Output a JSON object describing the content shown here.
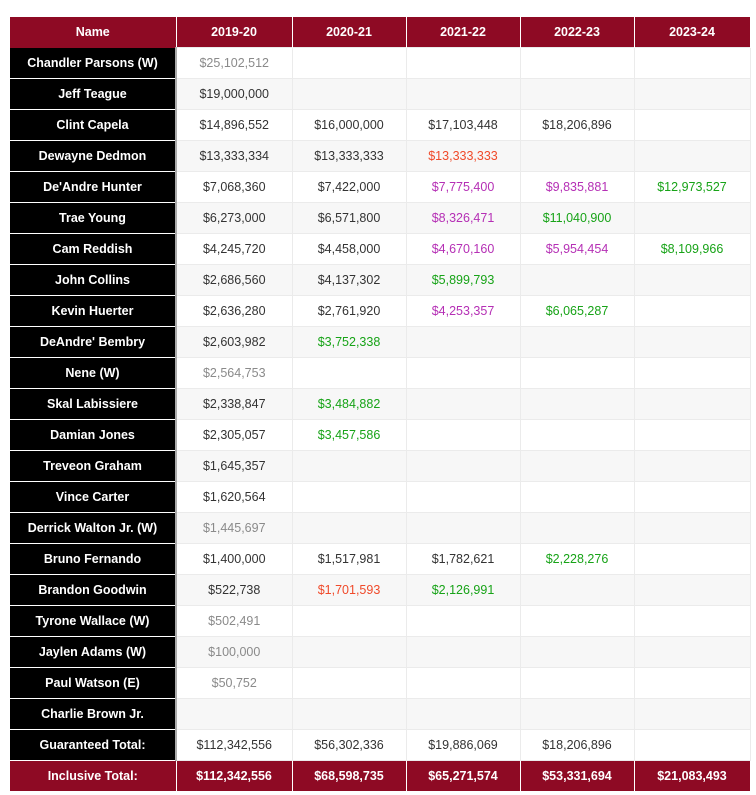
{
  "columns": [
    "Name",
    "2019-20",
    "2020-21",
    "2021-22",
    "2022-23",
    "2023-24"
  ],
  "colors": {
    "waived": "#8a8a8a",
    "player_option": "#f04a2a",
    "rookie_option": "#b52fb5",
    "qualifying_offer": "#17a317",
    "header": "#8e0a24"
  },
  "rows": [
    {
      "name": "Chandler Parsons (W)",
      "cells": [
        {
          "v": "$25,102,512",
          "t": "g"
        },
        {
          "v": ""
        },
        {
          "v": ""
        },
        {
          "v": ""
        },
        {
          "v": ""
        }
      ]
    },
    {
      "name": "Jeff Teague",
      "cells": [
        {
          "v": "$19,000,000"
        },
        {
          "v": ""
        },
        {
          "v": ""
        },
        {
          "v": ""
        },
        {
          "v": ""
        }
      ]
    },
    {
      "name": "Clint Capela",
      "cells": [
        {
          "v": "$14,896,552"
        },
        {
          "v": "$16,000,000"
        },
        {
          "v": "$17,103,448"
        },
        {
          "v": "$18,206,896"
        },
        {
          "v": ""
        }
      ]
    },
    {
      "name": "Dewayne Dedmon",
      "cells": [
        {
          "v": "$13,333,334"
        },
        {
          "v": "$13,333,333"
        },
        {
          "v": "$13,333,333",
          "t": "r"
        },
        {
          "v": ""
        },
        {
          "v": ""
        }
      ]
    },
    {
      "name": "De'Andre Hunter",
      "cells": [
        {
          "v": "$7,068,360"
        },
        {
          "v": "$7,422,000"
        },
        {
          "v": "$7,775,400",
          "t": "m"
        },
        {
          "v": "$9,835,881",
          "t": "m"
        },
        {
          "v": "$12,973,527",
          "t": "gr"
        }
      ]
    },
    {
      "name": "Trae Young",
      "cells": [
        {
          "v": "$6,273,000"
        },
        {
          "v": "$6,571,800"
        },
        {
          "v": "$8,326,471",
          "t": "m"
        },
        {
          "v": "$11,040,900",
          "t": "gr"
        },
        {
          "v": ""
        }
      ]
    },
    {
      "name": "Cam Reddish",
      "cells": [
        {
          "v": "$4,245,720"
        },
        {
          "v": "$4,458,000"
        },
        {
          "v": "$4,670,160",
          "t": "m"
        },
        {
          "v": "$5,954,454",
          "t": "m"
        },
        {
          "v": "$8,109,966",
          "t": "gr"
        }
      ]
    },
    {
      "name": "John Collins",
      "cells": [
        {
          "v": "$2,686,560"
        },
        {
          "v": "$4,137,302"
        },
        {
          "v": "$5,899,793",
          "t": "gr"
        },
        {
          "v": ""
        },
        {
          "v": ""
        }
      ]
    },
    {
      "name": "Kevin Huerter",
      "cells": [
        {
          "v": "$2,636,280"
        },
        {
          "v": "$2,761,920"
        },
        {
          "v": "$4,253,357",
          "t": "m"
        },
        {
          "v": "$6,065,287",
          "t": "gr"
        },
        {
          "v": ""
        }
      ]
    },
    {
      "name": "DeAndre' Bembry",
      "cells": [
        {
          "v": "$2,603,982"
        },
        {
          "v": "$3,752,338",
          "t": "gr"
        },
        {
          "v": ""
        },
        {
          "v": ""
        },
        {
          "v": ""
        }
      ]
    },
    {
      "name": "Nene (W)",
      "cells": [
        {
          "v": "$2,564,753",
          "t": "g"
        },
        {
          "v": ""
        },
        {
          "v": ""
        },
        {
          "v": ""
        },
        {
          "v": ""
        }
      ]
    },
    {
      "name": "Skal Labissiere",
      "cells": [
        {
          "v": "$2,338,847"
        },
        {
          "v": "$3,484,882",
          "t": "gr"
        },
        {
          "v": ""
        },
        {
          "v": ""
        },
        {
          "v": ""
        }
      ]
    },
    {
      "name": "Damian Jones",
      "cells": [
        {
          "v": "$2,305,057"
        },
        {
          "v": "$3,457,586",
          "t": "gr"
        },
        {
          "v": ""
        },
        {
          "v": ""
        },
        {
          "v": ""
        }
      ]
    },
    {
      "name": "Treveon Graham",
      "cells": [
        {
          "v": "$1,645,357"
        },
        {
          "v": ""
        },
        {
          "v": ""
        },
        {
          "v": ""
        },
        {
          "v": ""
        }
      ]
    },
    {
      "name": "Vince Carter",
      "cells": [
        {
          "v": "$1,620,564"
        },
        {
          "v": ""
        },
        {
          "v": ""
        },
        {
          "v": ""
        },
        {
          "v": ""
        }
      ]
    },
    {
      "name": "Derrick Walton Jr. (W)",
      "cells": [
        {
          "v": "$1,445,697",
          "t": "g"
        },
        {
          "v": ""
        },
        {
          "v": ""
        },
        {
          "v": ""
        },
        {
          "v": ""
        }
      ]
    },
    {
      "name": "Bruno Fernando",
      "cells": [
        {
          "v": "$1,400,000"
        },
        {
          "v": "$1,517,981"
        },
        {
          "v": "$1,782,621"
        },
        {
          "v": "$2,228,276",
          "t": "gr"
        },
        {
          "v": ""
        }
      ]
    },
    {
      "name": "Brandon Goodwin",
      "cells": [
        {
          "v": "$522,738"
        },
        {
          "v": "$1,701,593",
          "t": "r"
        },
        {
          "v": "$2,126,991",
          "t": "gr"
        },
        {
          "v": ""
        },
        {
          "v": ""
        }
      ]
    },
    {
      "name": "Tyrone Wallace (W)",
      "cells": [
        {
          "v": "$502,491",
          "t": "g"
        },
        {
          "v": ""
        },
        {
          "v": ""
        },
        {
          "v": ""
        },
        {
          "v": ""
        }
      ]
    },
    {
      "name": "Jaylen Adams (W)",
      "cells": [
        {
          "v": "$100,000",
          "t": "g"
        },
        {
          "v": ""
        },
        {
          "v": ""
        },
        {
          "v": ""
        },
        {
          "v": ""
        }
      ]
    },
    {
      "name": "Paul Watson (E)",
      "cells": [
        {
          "v": "$50,752",
          "t": "g"
        },
        {
          "v": ""
        },
        {
          "v": ""
        },
        {
          "v": ""
        },
        {
          "v": ""
        }
      ]
    },
    {
      "name": "Charlie Brown Jr.",
      "cells": [
        {
          "v": ""
        },
        {
          "v": ""
        },
        {
          "v": ""
        },
        {
          "v": ""
        },
        {
          "v": ""
        }
      ]
    },
    {
      "name": "Guaranteed Total:",
      "cells": [
        {
          "v": "$112,342,556"
        },
        {
          "v": "$56,302,336"
        },
        {
          "v": "$19,886,069"
        },
        {
          "v": "$18,206,896"
        },
        {
          "v": ""
        }
      ]
    }
  ],
  "total": {
    "name": "Inclusive Total:",
    "cells": [
      "$112,342,556",
      "$68,598,735",
      "$65,271,574",
      "$53,331,694",
      "$21,083,493"
    ]
  }
}
